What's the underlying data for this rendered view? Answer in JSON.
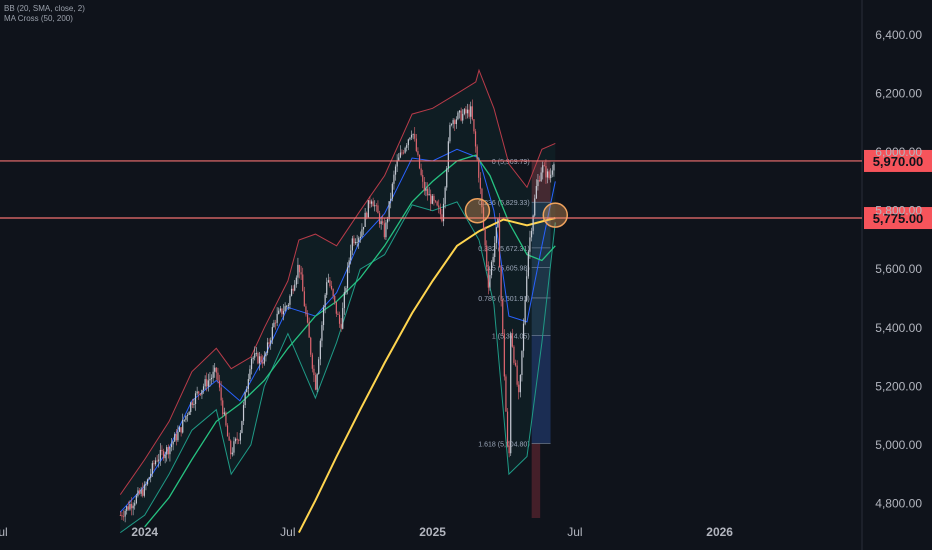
{
  "indicators": {
    "bb_label": "BB (20, SMA, close, 2)",
    "ma_label": "MA Cross (50, 200)"
  },
  "colors": {
    "background": "#0f131b",
    "axis_text": "#b2b5be",
    "up_candle": "#c7ccd6",
    "down_candle": "#e06670",
    "bb_upper": "#b83b49",
    "bb_lower": "#1f9a86",
    "bb_basis": "#2962ff",
    "ma_fast": "#26c281",
    "ma_slow": "#ffd54f",
    "level_line": "#f27070",
    "fib_box_top": "#4d2b34",
    "fib_box_mid": "#203a4e",
    "fib_box_bottom": "#1d325d",
    "fib_box_below": "#4e222b",
    "circle_marker": "#f0a35e"
  },
  "chart_data": {
    "type": "line",
    "title": "",
    "xlabel": "",
    "ylabel": "",
    "ylim": [
      4750,
      6520
    ],
    "x_range": [
      "2023-07-01",
      "2026-07-01"
    ],
    "x_ticks": [
      "Jul",
      "2024",
      "Jul",
      "2025",
      "Jul",
      "2026"
    ],
    "y_ticks": [
      4800,
      5000,
      5200,
      5400,
      5600,
      5800,
      6000,
      6200,
      6400
    ],
    "y_tick_labels": [
      "4,800.00",
      "5,000.00",
      "5,200.00",
      "5,400.00",
      "5,600.00",
      "5,800.00",
      "6,000.00",
      "6,200.00",
      "6,400.00"
    ],
    "series": [
      {
        "key": "price",
        "values": [
          [
            "2023-12-01",
            4760
          ],
          [
            "2024-01-01",
            4850
          ],
          [
            "2024-01-15",
            4950
          ],
          [
            "2024-02-01",
            4990
          ],
          [
            "2024-02-15",
            5050
          ],
          [
            "2024-03-01",
            5150
          ],
          [
            "2024-03-15",
            5200
          ],
          [
            "2024-04-01",
            5250
          ],
          [
            "2024-04-19",
            4970
          ],
          [
            "2024-05-01",
            5040
          ],
          [
            "2024-05-15",
            5300
          ],
          [
            "2024-06-01",
            5290
          ],
          [
            "2024-06-15",
            5430
          ],
          [
            "2024-07-01",
            5480
          ],
          [
            "2024-07-15",
            5620
          ],
          [
            "2024-08-05",
            5200
          ],
          [
            "2024-08-20",
            5580
          ],
          [
            "2024-09-06",
            5400
          ],
          [
            "2024-09-20",
            5700
          ],
          [
            "2024-10-01",
            5720
          ],
          [
            "2024-10-15",
            5850
          ],
          [
            "2024-11-01",
            5720
          ],
          [
            "2024-11-15",
            5950
          ],
          [
            "2024-12-06",
            6080
          ],
          [
            "2024-12-20",
            5880
          ],
          [
            "2025-01-13",
            5780
          ],
          [
            "2025-01-24",
            6110
          ],
          [
            "2025-02-19",
            6140
          ],
          [
            "2025-03-01",
            5920
          ],
          [
            "2025-03-13",
            5550
          ],
          [
            "2025-03-25",
            5760
          ],
          [
            "2025-04-08",
            4880
          ],
          [
            "2025-04-10",
            5400
          ],
          [
            "2025-04-21",
            5150
          ],
          [
            "2025-05-02",
            5650
          ],
          [
            "2025-05-13",
            5880
          ],
          [
            "2025-05-20",
            5950
          ],
          [
            "2025-05-30",
            5910
          ],
          [
            "2025-06-06",
            6000
          ]
        ]
      },
      {
        "key": "bb_upper",
        "values": [
          [
            "2023-12-01",
            4830
          ],
          [
            "2024-01-01",
            4950
          ],
          [
            "2024-02-01",
            5080
          ],
          [
            "2024-03-01",
            5250
          ],
          [
            "2024-04-01",
            5330
          ],
          [
            "2024-04-20",
            5260
          ],
          [
            "2024-05-15",
            5300
          ],
          [
            "2024-06-01",
            5400
          ],
          [
            "2024-07-01",
            5560
          ],
          [
            "2024-07-15",
            5700
          ],
          [
            "2024-08-05",
            5720
          ],
          [
            "2024-09-01",
            5680
          ],
          [
            "2024-10-01",
            5800
          ],
          [
            "2024-11-01",
            5920
          ],
          [
            "2024-12-06",
            6130
          ],
          [
            "2025-01-01",
            6150
          ],
          [
            "2025-02-01",
            6200
          ],
          [
            "2025-02-25",
            6240
          ],
          [
            "2025-03-01",
            6280
          ],
          [
            "2025-03-20",
            6150
          ],
          [
            "2025-04-08",
            5960
          ],
          [
            "2025-05-01",
            5880
          ],
          [
            "2025-05-20",
            6010
          ],
          [
            "2025-06-06",
            6030
          ]
        ]
      },
      {
        "key": "bb_lower",
        "values": [
          [
            "2023-12-01",
            4700
          ],
          [
            "2024-01-01",
            4760
          ],
          [
            "2024-02-01",
            4900
          ],
          [
            "2024-03-01",
            5050
          ],
          [
            "2024-04-01",
            5120
          ],
          [
            "2024-04-20",
            4900
          ],
          [
            "2024-05-15",
            5000
          ],
          [
            "2024-06-01",
            5200
          ],
          [
            "2024-07-01",
            5380
          ],
          [
            "2024-08-05",
            5160
          ],
          [
            "2024-09-01",
            5350
          ],
          [
            "2024-10-01",
            5600
          ],
          [
            "2024-11-01",
            5650
          ],
          [
            "2024-12-06",
            5820
          ],
          [
            "2025-01-01",
            5800
          ],
          [
            "2025-02-01",
            5830
          ],
          [
            "2025-03-01",
            5700
          ],
          [
            "2025-03-20",
            5480
          ],
          [
            "2025-04-08",
            4900
          ],
          [
            "2025-05-01",
            4960
          ],
          [
            "2025-05-20",
            5350
          ],
          [
            "2025-06-06",
            5760
          ]
        ]
      },
      {
        "key": "bb_basis",
        "values": [
          [
            "2023-12-01",
            4770
          ],
          [
            "2024-01-01",
            4860
          ],
          [
            "2024-02-01",
            4990
          ],
          [
            "2024-03-01",
            5150
          ],
          [
            "2024-04-01",
            5220
          ],
          [
            "2024-05-01",
            5150
          ],
          [
            "2024-06-01",
            5300
          ],
          [
            "2024-07-01",
            5470
          ],
          [
            "2024-08-05",
            5440
          ],
          [
            "2024-09-01",
            5520
          ],
          [
            "2024-10-01",
            5700
          ],
          [
            "2024-11-01",
            5790
          ],
          [
            "2024-12-06",
            5980
          ],
          [
            "2025-01-01",
            5970
          ],
          [
            "2025-02-01",
            6010
          ],
          [
            "2025-03-01",
            5980
          ],
          [
            "2025-03-20",
            5800
          ],
          [
            "2025-04-08",
            5440
          ],
          [
            "2025-05-01",
            5420
          ],
          [
            "2025-05-20",
            5680
          ],
          [
            "2025-06-06",
            5900
          ]
        ]
      },
      {
        "key": "ma_fast",
        "values": [
          [
            "2024-01-01",
            4720
          ],
          [
            "2024-02-01",
            4820
          ],
          [
            "2024-03-01",
            4950
          ],
          [
            "2024-04-01",
            5080
          ],
          [
            "2024-05-01",
            5140
          ],
          [
            "2024-06-01",
            5220
          ],
          [
            "2024-07-01",
            5330
          ],
          [
            "2024-08-05",
            5440
          ],
          [
            "2024-09-01",
            5490
          ],
          [
            "2024-10-01",
            5570
          ],
          [
            "2024-11-01",
            5680
          ],
          [
            "2024-12-06",
            5830
          ],
          [
            "2025-01-01",
            5900
          ],
          [
            "2025-02-01",
            5970
          ],
          [
            "2025-02-25",
            5990
          ],
          [
            "2025-03-15",
            5920
          ],
          [
            "2025-04-08",
            5760
          ],
          [
            "2025-05-01",
            5650
          ],
          [
            "2025-05-20",
            5630
          ],
          [
            "2025-06-06",
            5680
          ]
        ]
      },
      {
        "key": "ma_slow",
        "values": [
          [
            "2024-07-15",
            4700
          ],
          [
            "2024-08-05",
            4810
          ],
          [
            "2024-09-01",
            4960
          ],
          [
            "2024-10-01",
            5120
          ],
          [
            "2024-11-01",
            5280
          ],
          [
            "2024-12-06",
            5450
          ],
          [
            "2025-01-01",
            5560
          ],
          [
            "2025-02-01",
            5680
          ],
          [
            "2025-03-01",
            5730
          ],
          [
            "2025-04-01",
            5770
          ],
          [
            "2025-05-01",
            5750
          ],
          [
            "2025-06-06",
            5775
          ]
        ]
      }
    ],
    "horizontal_levels": [
      {
        "value": 5970,
        "label": "5,970.00"
      },
      {
        "value": 5775,
        "label": "5,775.00"
      }
    ],
    "fibonacci": {
      "start_date": "2025-05-07",
      "end_date": "2025-05-31",
      "levels": [
        {
          "ratio": "0",
          "value": 5970,
          "label": "0 (5,969.79)"
        },
        {
          "ratio": "0.236",
          "value": 5829,
          "label": "0.236 (5,829.33)"
        },
        {
          "ratio": "0.382",
          "value": 5673,
          "label": "0.382 (5,672.31)"
        },
        {
          "ratio": "0.5",
          "value": 5606,
          "label": "0.5 (5,605.98)"
        },
        {
          "ratio": "0.786",
          "value": 5502,
          "label": "0.786 (5,501.91)"
        },
        {
          "ratio": "1",
          "value": 5374,
          "label": "1 (5,374.05)"
        },
        {
          "ratio": "1.618",
          "value": 5005,
          "label": "1.618 (5,004.80)"
        }
      ]
    },
    "crossover_markers": [
      {
        "date": "2025-02-27",
        "value": 5800
      },
      {
        "date": "2025-06-06",
        "value": 5785
      }
    ]
  }
}
